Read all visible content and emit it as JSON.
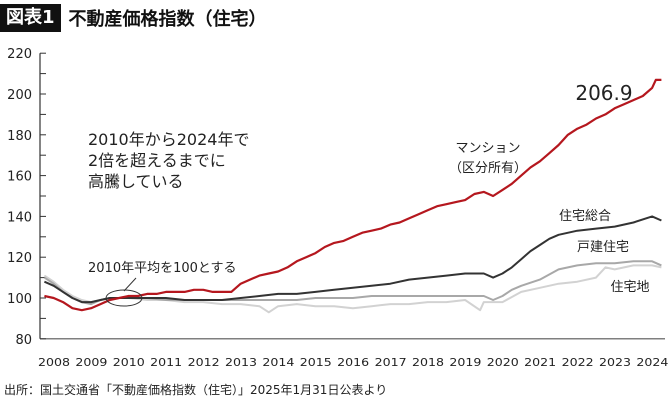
{
  "header": {
    "badge": "図表1",
    "title": "不動産価格指数（住宅）"
  },
  "source": "出所：国土交通省「不動産価格指数（住宅）」2025年1月31日公表より",
  "chart_data": {
    "type": "line",
    "title": "不動産価格指数（住宅）",
    "xlabel": "",
    "ylabel": "",
    "xlim": [
      2008,
      2024.75
    ],
    "ylim": [
      80,
      220
    ],
    "x_ticks": [
      "2008",
      "2009",
      "2010",
      "2011",
      "2012",
      "2013",
      "2014",
      "2015",
      "2016",
      "2017",
      "2018",
      "2019",
      "2020",
      "2021",
      "2022",
      "2023",
      "2024"
    ],
    "y_ticks": [
      80,
      100,
      120,
      140,
      160,
      180,
      200,
      220
    ],
    "grid": false,
    "annotations": {
      "end_value": "206.9",
      "headline": [
        "2010年から2024年で",
        "2倍を超えるまでに",
        "高騰している"
      ],
      "base_note": "2010年平均を100とする"
    },
    "series": [
      {
        "name": "マンション（区分所有）",
        "label_lines": [
          "マンション",
          "（区分所有）"
        ],
        "color": "#b5171e",
        "points": [
          [
            2008.25,
            101
          ],
          [
            2008.5,
            100
          ],
          [
            2008.75,
            98
          ],
          [
            2009,
            95
          ],
          [
            2009.25,
            94
          ],
          [
            2009.5,
            95
          ],
          [
            2009.75,
            97
          ],
          [
            2010,
            99
          ],
          [
            2010.25,
            100
          ],
          [
            2010.5,
            101
          ],
          [
            2010.75,
            101
          ],
          [
            2011,
            102
          ],
          [
            2011.25,
            102
          ],
          [
            2011.5,
            103
          ],
          [
            2011.75,
            103
          ],
          [
            2012,
            103
          ],
          [
            2012.25,
            104
          ],
          [
            2012.5,
            104
          ],
          [
            2012.75,
            103
          ],
          [
            2013,
            103
          ],
          [
            2013.25,
            103
          ],
          [
            2013.5,
            107
          ],
          [
            2013.75,
            109
          ],
          [
            2014,
            111
          ],
          [
            2014.25,
            112
          ],
          [
            2014.5,
            113
          ],
          [
            2014.75,
            115
          ],
          [
            2015,
            118
          ],
          [
            2015.25,
            120
          ],
          [
            2015.5,
            122
          ],
          [
            2015.75,
            125
          ],
          [
            2016,
            127
          ],
          [
            2016.25,
            128
          ],
          [
            2016.5,
            130
          ],
          [
            2016.75,
            132
          ],
          [
            2017,
            133
          ],
          [
            2017.25,
            134
          ],
          [
            2017.5,
            136
          ],
          [
            2017.75,
            137
          ],
          [
            2018,
            139
          ],
          [
            2018.25,
            141
          ],
          [
            2018.5,
            143
          ],
          [
            2018.75,
            145
          ],
          [
            2019,
            146
          ],
          [
            2019.25,
            147
          ],
          [
            2019.5,
            148
          ],
          [
            2019.75,
            151
          ],
          [
            2020,
            152
          ],
          [
            2020.25,
            150
          ],
          [
            2020.5,
            153
          ],
          [
            2020.75,
            156
          ],
          [
            2021,
            160
          ],
          [
            2021.25,
            164
          ],
          [
            2021.5,
            167
          ],
          [
            2021.75,
            171
          ],
          [
            2022,
            175
          ],
          [
            2022.25,
            180
          ],
          [
            2022.5,
            183
          ],
          [
            2022.75,
            185
          ],
          [
            2023,
            188
          ],
          [
            2023.25,
            190
          ],
          [
            2023.5,
            193
          ],
          [
            2023.75,
            195
          ],
          [
            2024,
            197
          ],
          [
            2024.25,
            199
          ],
          [
            2024.5,
            203
          ],
          [
            2024.6,
            206.9
          ],
          [
            2024.75,
            206.9
          ]
        ]
      },
      {
        "name": "住宅総合",
        "label_lines": [
          "住宅総合"
        ],
        "color": "#333333",
        "points": [
          [
            2008.25,
            108
          ],
          [
            2008.5,
            106
          ],
          [
            2008.75,
            103
          ],
          [
            2009,
            100
          ],
          [
            2009.25,
            98
          ],
          [
            2009.5,
            98
          ],
          [
            2009.75,
            99
          ],
          [
            2010,
            100
          ],
          [
            2010.5,
            100
          ],
          [
            2011,
            100
          ],
          [
            2011.5,
            100
          ],
          [
            2012,
            99
          ],
          [
            2012.5,
            99
          ],
          [
            2013,
            99
          ],
          [
            2013.5,
            100
          ],
          [
            2014,
            101
          ],
          [
            2014.5,
            102
          ],
          [
            2015,
            102
          ],
          [
            2015.5,
            103
          ],
          [
            2016,
            104
          ],
          [
            2016.5,
            105
          ],
          [
            2017,
            106
          ],
          [
            2017.5,
            107
          ],
          [
            2018,
            109
          ],
          [
            2018.5,
            110
          ],
          [
            2019,
            111
          ],
          [
            2019.5,
            112
          ],
          [
            2020,
            112
          ],
          [
            2020.25,
            110
          ],
          [
            2020.5,
            112
          ],
          [
            2020.75,
            115
          ],
          [
            2021,
            119
          ],
          [
            2021.25,
            123
          ],
          [
            2021.5,
            126
          ],
          [
            2021.75,
            129
          ],
          [
            2022,
            131
          ],
          [
            2022.5,
            133
          ],
          [
            2023,
            134
          ],
          [
            2023.5,
            135
          ],
          [
            2024,
            137
          ],
          [
            2024.5,
            140
          ],
          [
            2024.75,
            138
          ]
        ]
      },
      {
        "name": "戸建住宅",
        "label_lines": [
          "戸建住宅"
        ],
        "color": "#a8a8a8",
        "points": [
          [
            2008.25,
            110
          ],
          [
            2008.5,
            107
          ],
          [
            2008.75,
            103
          ],
          [
            2009,
            100
          ],
          [
            2009.25,
            98
          ],
          [
            2009.5,
            97
          ],
          [
            2009.75,
            99
          ],
          [
            2010,
            100
          ],
          [
            2010.5,
            100
          ],
          [
            2011,
            100
          ],
          [
            2011.5,
            99
          ],
          [
            2012,
            99
          ],
          [
            2012.5,
            99
          ],
          [
            2013,
            99
          ],
          [
            2013.5,
            99
          ],
          [
            2014,
            99
          ],
          [
            2014.5,
            99
          ],
          [
            2015,
            99
          ],
          [
            2015.5,
            100
          ],
          [
            2016,
            100
          ],
          [
            2016.5,
            100
          ],
          [
            2017,
            101
          ],
          [
            2017.5,
            101
          ],
          [
            2018,
            101
          ],
          [
            2018.5,
            101
          ],
          [
            2019,
            101
          ],
          [
            2019.5,
            101
          ],
          [
            2020,
            101
          ],
          [
            2020.25,
            99
          ],
          [
            2020.5,
            101
          ],
          [
            2020.75,
            104
          ],
          [
            2021,
            106
          ],
          [
            2021.5,
            109
          ],
          [
            2022,
            114
          ],
          [
            2022.5,
            116
          ],
          [
            2023,
            117
          ],
          [
            2023.5,
            117
          ],
          [
            2024,
            118
          ],
          [
            2024.5,
            118
          ],
          [
            2024.75,
            116
          ]
        ]
      },
      {
        "name": "住宅地",
        "label_lines": [
          "住宅地"
        ],
        "color": "#d2d2d2",
        "points": [
          [
            2008.25,
            111
          ],
          [
            2008.5,
            108
          ],
          [
            2008.75,
            104
          ],
          [
            2009,
            101
          ],
          [
            2009.25,
            99
          ],
          [
            2009.5,
            98
          ],
          [
            2009.75,
            99
          ],
          [
            2010,
            100
          ],
          [
            2010.5,
            100
          ],
          [
            2011,
            99
          ],
          [
            2011.5,
            99
          ],
          [
            2012,
            98
          ],
          [
            2012.5,
            98
          ],
          [
            2013,
            97
          ],
          [
            2013.5,
            97
          ],
          [
            2014,
            96
          ],
          [
            2014.25,
            93
          ],
          [
            2014.5,
            96
          ],
          [
            2015,
            97
          ],
          [
            2015.5,
            96
          ],
          [
            2016,
            96
          ],
          [
            2016.5,
            95
          ],
          [
            2017,
            96
          ],
          [
            2017.5,
            97
          ],
          [
            2018,
            97
          ],
          [
            2018.5,
            98
          ],
          [
            2019,
            98
          ],
          [
            2019.5,
            99
          ],
          [
            2019.9,
            94
          ],
          [
            2020,
            98
          ],
          [
            2020.5,
            98
          ],
          [
            2021,
            103
          ],
          [
            2021.5,
            105
          ],
          [
            2022,
            107
          ],
          [
            2022.5,
            108
          ],
          [
            2023,
            110
          ],
          [
            2023.25,
            115
          ],
          [
            2023.5,
            114
          ],
          [
            2024,
            116
          ],
          [
            2024.5,
            116
          ],
          [
            2024.75,
            115
          ]
        ]
      }
    ]
  }
}
